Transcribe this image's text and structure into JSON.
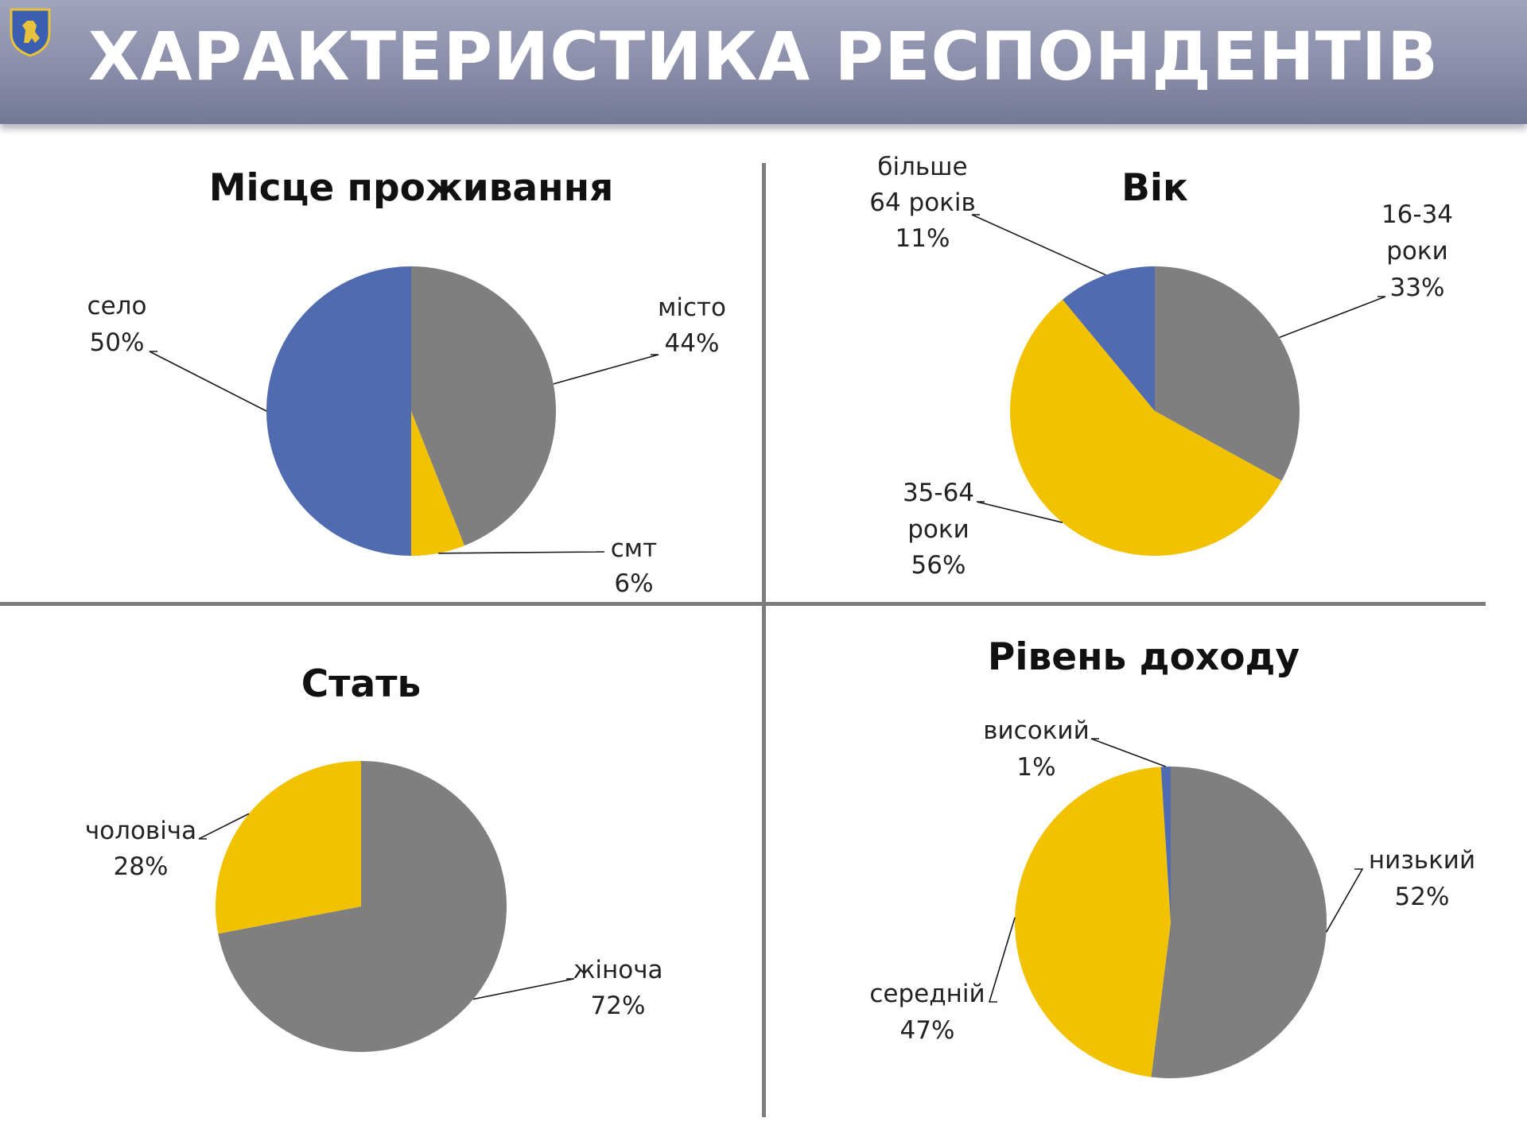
{
  "header": {
    "title": "ХАРАКТЕРИСТИКА РЕСПОНДЕНТІВ"
  },
  "colors": {
    "grey": "#7f7f7f",
    "yellow": "#f2c200",
    "blue": "#516bb0"
  },
  "logo": {
    "icon": "lion-crest-icon"
  },
  "chart_data": [
    {
      "type": "pie",
      "title": "Місце проживання",
      "slices": [
        {
          "label": "місто",
          "value": 44,
          "pct": "44%",
          "color": "#7f7f7f"
        },
        {
          "label": "смт",
          "value": 6,
          "pct": "6%",
          "color": "#f2c200"
        },
        {
          "label": "село",
          "value": 50,
          "pct": "50%",
          "color": "#516bb0"
        }
      ]
    },
    {
      "type": "pie",
      "title": "Вік",
      "slices": [
        {
          "label": "16-34 роки",
          "value": 33,
          "pct": "33%",
          "color": "#7f7f7f"
        },
        {
          "label": "35-64 роки",
          "value": 56,
          "pct": "56%",
          "color": "#f2c200"
        },
        {
          "label": "більше 64 років",
          "value": 11,
          "pct": "11%",
          "color": "#516bb0"
        }
      ]
    },
    {
      "type": "pie",
      "title": "Стать",
      "slices": [
        {
          "label": "жіноча",
          "value": 72,
          "pct": "72%",
          "color": "#7f7f7f"
        },
        {
          "label": "чоловіча",
          "value": 28,
          "pct": "28%",
          "color": "#f2c200"
        }
      ]
    },
    {
      "type": "pie",
      "title": "Рівень доходу",
      "slices": [
        {
          "label": "низький",
          "value": 52,
          "pct": "52%",
          "color": "#7f7f7f"
        },
        {
          "label": "середній",
          "value": 47,
          "pct": "47%",
          "color": "#f2c200"
        },
        {
          "label": "високий",
          "value": 1,
          "pct": "1%",
          "color": "#516bb0"
        }
      ]
    }
  ]
}
